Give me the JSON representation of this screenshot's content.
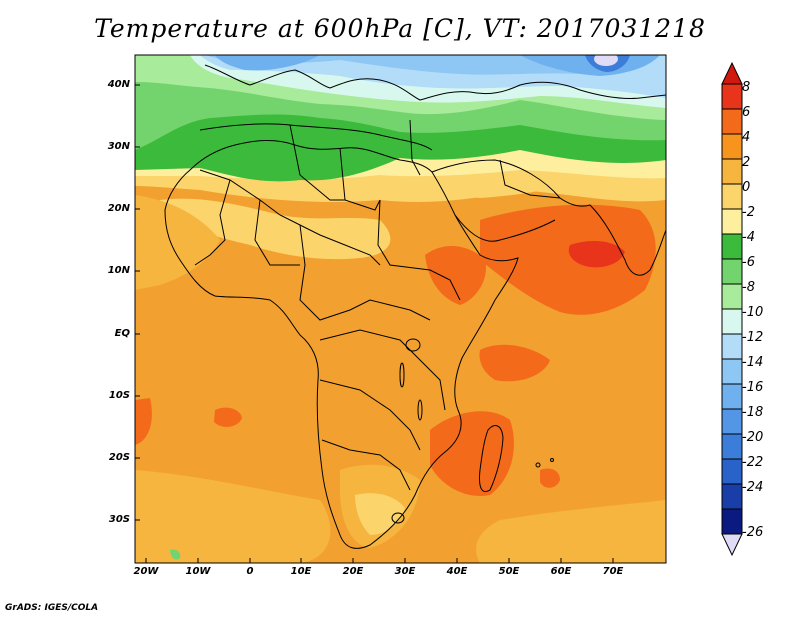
{
  "title": "Temperature at 600hPa [C], VT: 2017031218",
  "credit": "GrADS: IGES/COLA",
  "axes": {
    "lat_labels": [
      "40N",
      "30N",
      "20N",
      "10N",
      "EQ",
      "10S",
      "20S",
      "30S"
    ],
    "lon_labels": [
      "20W",
      "10W",
      "0",
      "10E",
      "20E",
      "30E",
      "40E",
      "50E",
      "60E",
      "70E"
    ]
  },
  "colorbar": {
    "labels": [
      "8",
      "6",
      "4",
      "2",
      "0",
      "-2",
      "-4",
      "-6",
      "-8",
      "-10",
      "-12",
      "-14",
      "-16",
      "-18",
      "-20",
      "-22",
      "-24",
      "-26"
    ],
    "colors": [
      "#e8341a",
      "#f26a1a",
      "#f7941d",
      "#f6b53e",
      "#fbd46b",
      "#fdef9e",
      "#3cba3c",
      "#73d46e",
      "#a8eb9a",
      "#d8f8ef",
      "#b2dcf7",
      "#8ec6f4",
      "#6fb0ee",
      "#5296e5",
      "#3c7dd9",
      "#2962c8",
      "#1a3ea8",
      "#0b1a80"
    ],
    "top_arrow_color": "#d0180f",
    "bottom_arrow_color": "#e0dbf6"
  },
  "map": {
    "ocean_color": "#f2a030",
    "coast_color": "#000000"
  }
}
